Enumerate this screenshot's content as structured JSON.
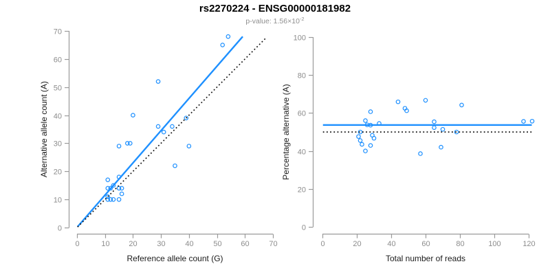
{
  "header": {
    "title": "rs2270224 - ENSG00000181982",
    "p_value_text": "p-value: 1.56×10",
    "p_value_exponent": "-2"
  },
  "colors": {
    "accent_blue": "#1E90FF",
    "dotted_line_black": "#111111",
    "axis_gray": "#9a9a9a",
    "tick_label_gray": "#8c8c8c",
    "axis_title_dark": "#1a1a1a"
  },
  "chart_data": [
    {
      "type": "scatter",
      "name": "allele-count-scatter",
      "xlabel": "Reference allele count (G)",
      "ylabel": "Alternative allele count (A)",
      "xlim": [
        0,
        70
      ],
      "ylim": [
        0,
        70
      ],
      "xticks": [
        0,
        10,
        20,
        30,
        40,
        50,
        60,
        70
      ],
      "yticks": [
        0,
        10,
        20,
        30,
        40,
        50,
        60,
        70
      ],
      "grid": false,
      "legend": "none",
      "marker": "open-circle",
      "points": [
        [
          11,
          17
        ],
        [
          15,
          18
        ],
        [
          13,
          15
        ],
        [
          11,
          14
        ],
        [
          12,
          14
        ],
        [
          15,
          14
        ],
        [
          16,
          14
        ],
        [
          16,
          12
        ],
        [
          11,
          11
        ],
        [
          11,
          10
        ],
        [
          12,
          10
        ],
        [
          13,
          10
        ],
        [
          15,
          10
        ],
        [
          15,
          29
        ],
        [
          18,
          30
        ],
        [
          19,
          30
        ],
        [
          20,
          40
        ],
        [
          29,
          36
        ],
        [
          29,
          52
        ],
        [
          31,
          34
        ],
        [
          34,
          36
        ],
        [
          35,
          22
        ],
        [
          39,
          39
        ],
        [
          40,
          29
        ],
        [
          52,
          65
        ],
        [
          54,
          68
        ]
      ],
      "lines": [
        {
          "name": "regression-line",
          "style": "solid",
          "color": "accent",
          "x1": 0.2,
          "y1": 0.3,
          "x2": 59.2,
          "y2": 68.0
        },
        {
          "name": "identity-line",
          "style": "dotted",
          "color": "black",
          "x1": 0.2,
          "y1": 0.2,
          "x2": 67.5,
          "y2": 67.5
        }
      ]
    },
    {
      "type": "scatter",
      "name": "percentage-vs-reads-scatter",
      "xlabel": "Total number of reads",
      "ylabel": "Percentage alternative (A)",
      "xlim": [
        0,
        120
      ],
      "ylim": [
        0,
        100
      ],
      "xticks": [
        0,
        20,
        40,
        60,
        80,
        100,
        120
      ],
      "yticks": [
        0,
        20,
        40,
        60,
        80,
        100
      ],
      "grid": false,
      "legend": "none",
      "marker": "open-circle",
      "points": [
        [
          28,
          60.7
        ],
        [
          33,
          54.5
        ],
        [
          28,
          53.6
        ],
        [
          25,
          56.0
        ],
        [
          26,
          53.8
        ],
        [
          29,
          48.3
        ],
        [
          30,
          46.7
        ],
        [
          28,
          42.9
        ],
        [
          22,
          50.0
        ],
        [
          21,
          47.6
        ],
        [
          22,
          45.5
        ],
        [
          23,
          43.5
        ],
        [
          25,
          40.0
        ],
        [
          44,
          65.9
        ],
        [
          48,
          62.5
        ],
        [
          49,
          61.2
        ],
        [
          60,
          66.7
        ],
        [
          65,
          55.4
        ],
        [
          81,
          64.2
        ],
        [
          65,
          52.3
        ],
        [
          70,
          51.4
        ],
        [
          57,
          38.6
        ],
        [
          78,
          50.0
        ],
        [
          69,
          42.0
        ],
        [
          117,
          55.6
        ],
        [
          122,
          55.7
        ]
      ],
      "lines": [
        {
          "name": "mean-percentage-line",
          "style": "solid",
          "color": "accent",
          "x1": 0.3,
          "y1": 53.7,
          "x2": 121.8,
          "y2": 53.7
        },
        {
          "name": "reference-50-line",
          "style": "dotted",
          "color": "black",
          "x1": 0.3,
          "y1": 50,
          "x2": 121.8,
          "y2": 50
        }
      ]
    }
  ]
}
